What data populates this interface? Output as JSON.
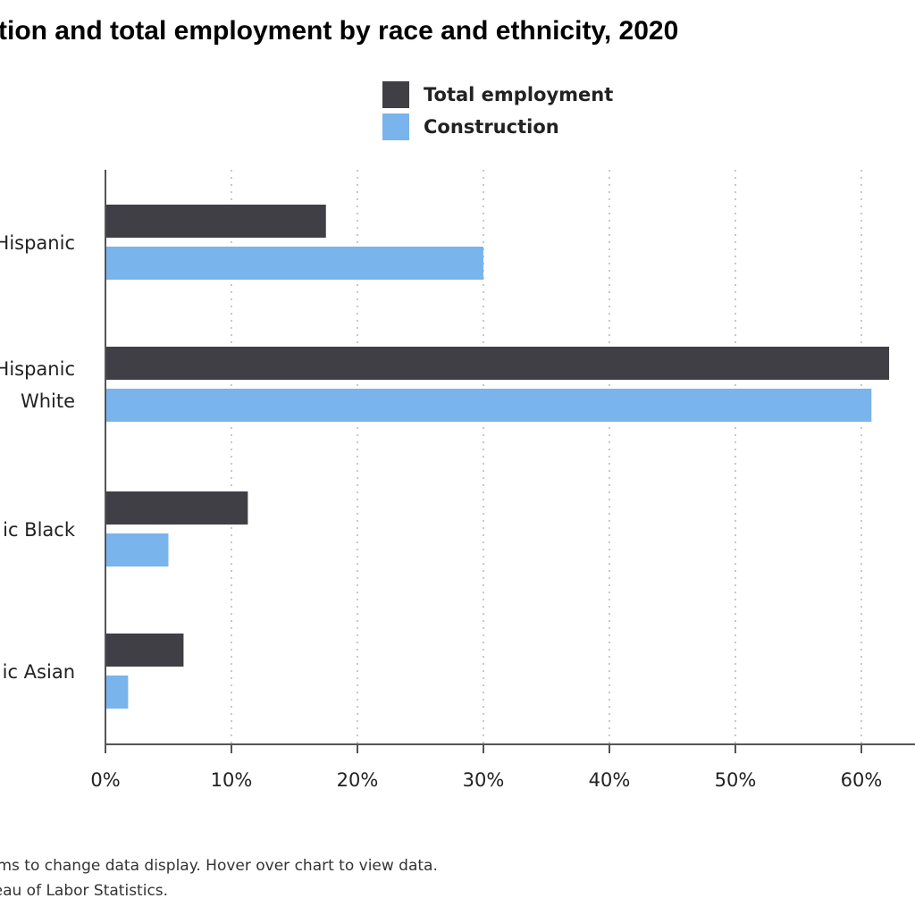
{
  "title": "tion and total employment by race and ethnicity, 2020",
  "footer": {
    "line1": "ems to change data display. Hover over chart to view data.",
    "line2": "reau of Labor Statistics."
  },
  "colors": {
    "total": "#3f3f45",
    "construction": "#7ab4ec",
    "grid": "#c8c8c8",
    "axis": "#555555"
  },
  "chart_data": {
    "type": "bar",
    "orientation": "horizontal",
    "title": "tion and total employment by race and ethnicity, 2020",
    "categories": [
      [
        "Hispanic"
      ],
      [
        "Hispanic",
        "White"
      ],
      [
        "ic Black"
      ],
      [
        "ic Asian"
      ]
    ],
    "series": [
      {
        "name": "Total employment",
        "color": "#3f3f45",
        "values": [
          17.5,
          62.2,
          11.3,
          6.2
        ]
      },
      {
        "name": "Construction",
        "color": "#7ab4ec",
        "values": [
          30.0,
          60.8,
          5.0,
          1.8
        ]
      }
    ],
    "xticks": [
      "0%",
      "10%",
      "20%",
      "30%",
      "40%",
      "50%",
      "60%"
    ],
    "xlim": [
      0,
      60
    ],
    "grid": true,
    "legend": "top"
  }
}
